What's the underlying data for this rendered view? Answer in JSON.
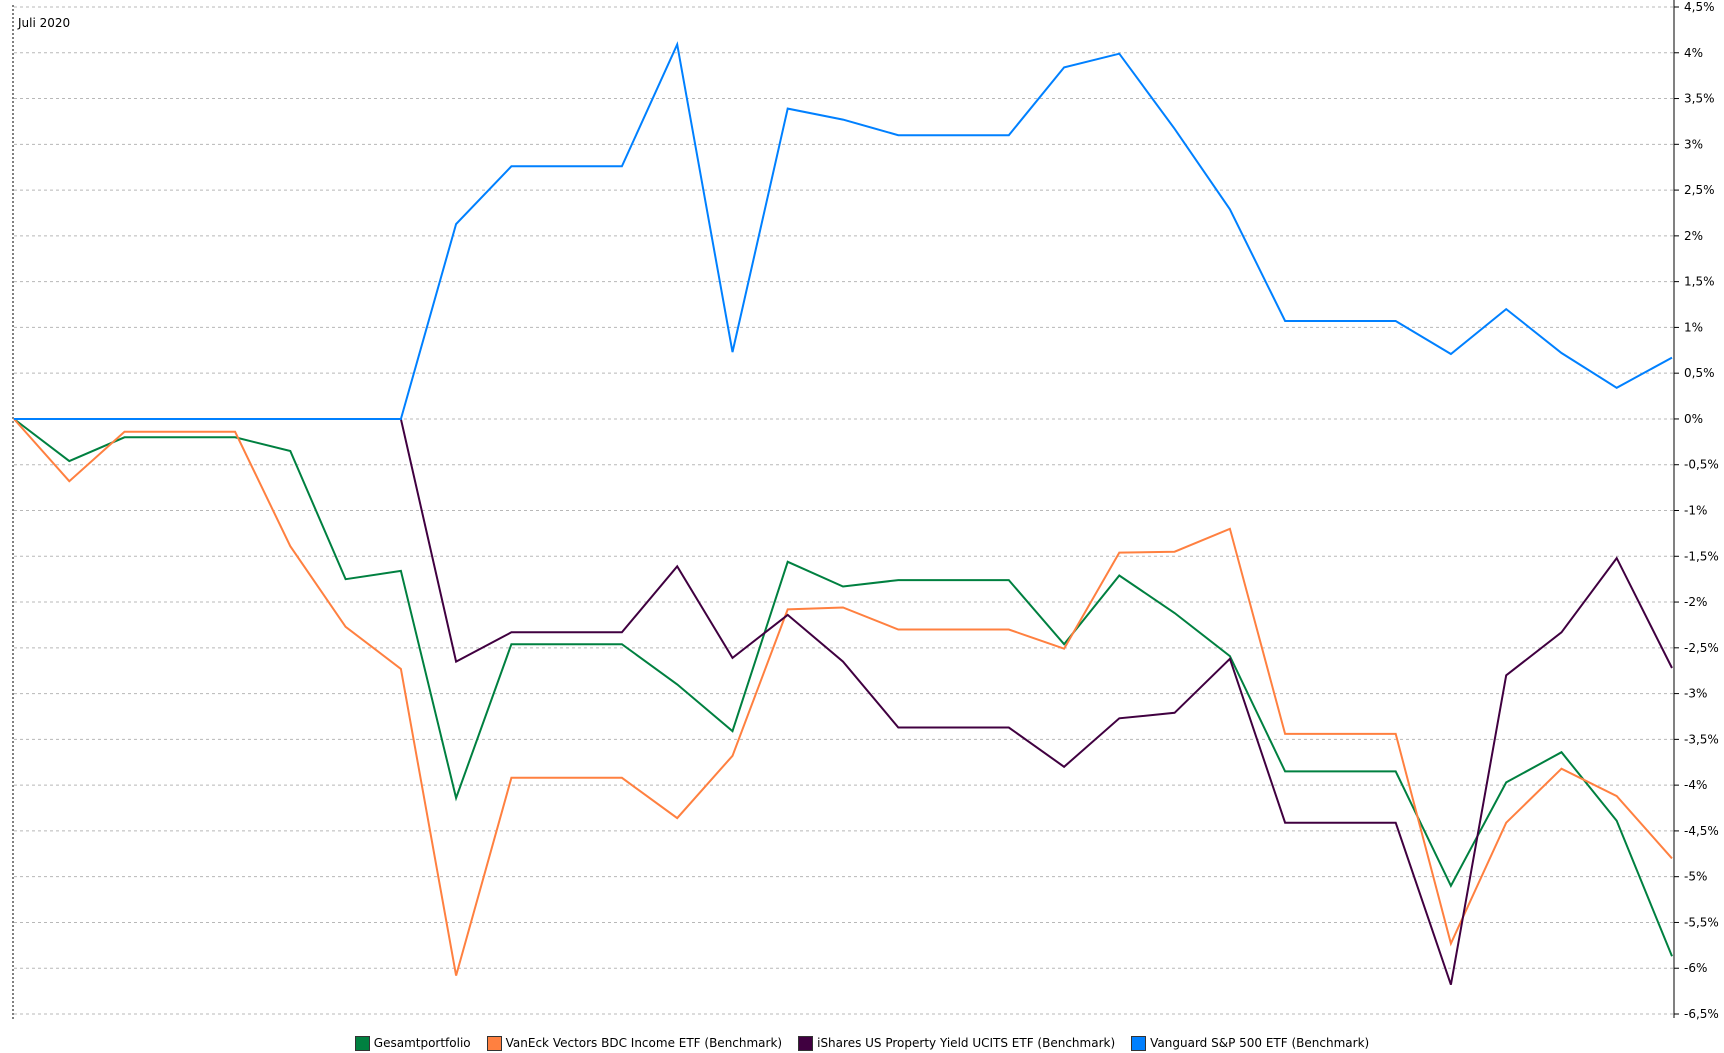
{
  "chart_data": {
    "type": "line",
    "title": "",
    "xlabel": "",
    "ylabel": "",
    "x_start_label": "Juli 2020",
    "ylim": [
      -6.5,
      4.5
    ],
    "y_ticks": [
      4.5,
      4,
      3.5,
      3,
      2.5,
      2,
      1.5,
      1,
      0.5,
      0,
      -0.5,
      -1,
      -1.5,
      -2,
      -2.5,
      -3,
      -3.5,
      -4,
      -4.5,
      -5,
      -5.5,
      -6,
      -6.5
    ],
    "y_tick_labels": [
      "4,5%",
      "4%",
      "3,5%",
      "3%",
      "2,5%",
      "2%",
      "1,5%",
      "1%",
      "0,5%",
      "0%",
      "-0,5%",
      "-1%",
      "-1,5%",
      "-2%",
      "-2,5%",
      "-3%",
      "-3,5%",
      "-4%",
      "-4,5%",
      "-5%",
      "-5,5%",
      "-6%",
      "-6,5%"
    ],
    "grid": true,
    "legend_position": "bottom",
    "series": [
      {
        "name": "Gesamtportfolio",
        "color": "#008040",
        "values": [
          0,
          -0.46,
          -0.2,
          -0.2,
          -0.2,
          -0.35,
          -1.75,
          -1.66,
          -4.14,
          -2.46,
          -2.46,
          -2.46,
          -2.9,
          -3.41,
          -1.56,
          -1.83,
          -1.76,
          -1.76,
          -1.76,
          -2.46,
          -1.71,
          -2.12,
          -2.59,
          -3.85,
          -3.85,
          -3.85,
          -5.1,
          -3.97,
          -3.64,
          -4.39,
          -5.87
        ]
      },
      {
        "name": "VanEck Vectors BDC Income ETF (Benchmark)",
        "color": "#ff8040",
        "values": [
          0,
          -0.68,
          -0.14,
          -0.14,
          -0.14,
          -1.39,
          -2.27,
          -2.73,
          -6.08,
          -3.92,
          -3.92,
          -3.92,
          -4.36,
          -3.68,
          -2.08,
          -2.06,
          -2.3,
          -2.3,
          -2.3,
          -2.51,
          -1.46,
          -1.45,
          -1.2,
          -3.44,
          -3.44,
          -3.44,
          -5.73,
          -4.41,
          -3.82,
          -4.12,
          -4.8
        ]
      },
      {
        "name": "iShares US Property Yield UCITS ETF (Benchmark)",
        "color": "#400040",
        "values": [
          0,
          0,
          0,
          0,
          0,
          0,
          0,
          0,
          -2.65,
          -2.33,
          -2.33,
          -2.33,
          -1.61,
          -2.61,
          -2.14,
          -2.65,
          -3.37,
          -3.37,
          -3.37,
          -3.8,
          -3.27,
          -3.21,
          -2.62,
          -4.41,
          -4.41,
          -4.41,
          -6.18,
          -2.8,
          -2.33,
          -1.52,
          -2.72
        ]
      },
      {
        "name": "Vanguard S&P 500 ETF (Benchmark)",
        "color": "#0080ff",
        "values": [
          0,
          0,
          0,
          0,
          0,
          0,
          0,
          0,
          2.13,
          2.76,
          2.76,
          2.76,
          4.09,
          0.73,
          3.39,
          3.27,
          3.1,
          3.1,
          3.1,
          3.84,
          3.99,
          3.17,
          2.29,
          1.07,
          1.07,
          1.07,
          0.71,
          1.2,
          0.72,
          0.34,
          0.67
        ]
      }
    ]
  }
}
